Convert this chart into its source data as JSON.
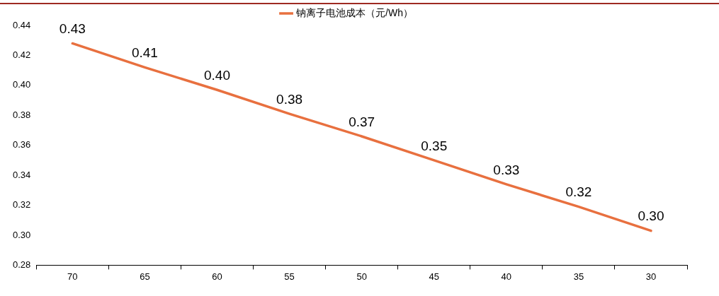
{
  "chart_data": {
    "type": "line",
    "categories": [
      "70",
      "65",
      "60",
      "55",
      "50",
      "45",
      "40",
      "35",
      "30"
    ],
    "series": [
      {
        "name": "钠离子电池成本（元/Wh）",
        "color": "#e8703f",
        "values": [
          0.428,
          0.412,
          0.397,
          0.381,
          0.366,
          0.35,
          0.334,
          0.319,
          0.303
        ],
        "value_labels": [
          "0.43",
          "0.41",
          "0.40",
          "0.38",
          "0.37",
          "0.35",
          "0.33",
          "0.32",
          "0.30"
        ]
      }
    ],
    "ylim": [
      0.28,
      0.44
    ],
    "yticks": [
      0.28,
      {
        "value": 0.3,
        "label": "0.30"
      },
      0.32,
      0.34,
      0.36,
      0.38,
      {
        "value": 0.4,
        "label": "0.40"
      },
      0.42,
      0.44
    ],
    "grid": false,
    "legend": "top",
    "marker": "none",
    "line_style": "solid"
  }
}
